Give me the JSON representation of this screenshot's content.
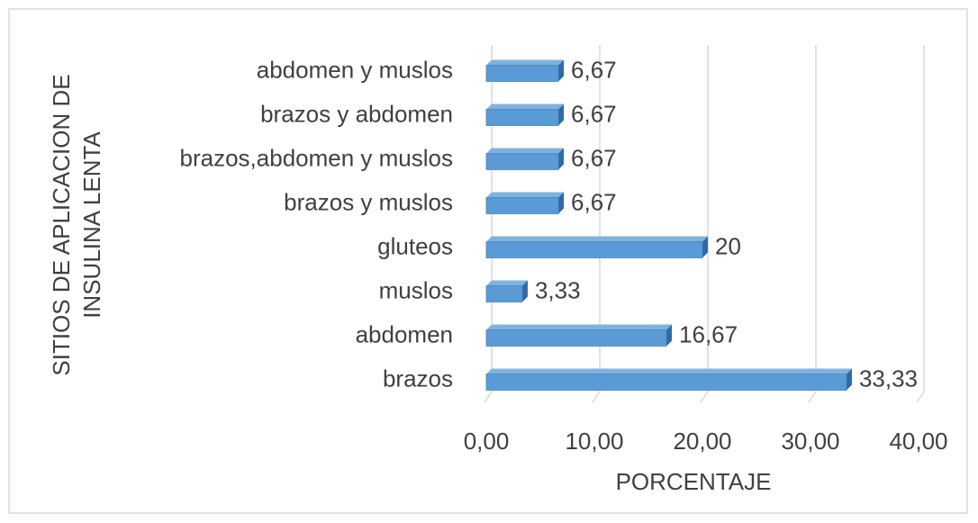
{
  "chart_data": {
    "type": "bar",
    "orientation": "horizontal",
    "xlabel": "PORCENTAJE",
    "ylabel": [
      "SITIOS DE APLICACION DE",
      "INSULINA LENTA"
    ],
    "categories": [
      "brazos",
      "abdomen",
      "muslos",
      "gluteos",
      "brazos y muslos",
      "brazos,abdomen y muslos",
      "brazos y abdomen",
      "abdomen y muslos"
    ],
    "values": [
      33.33,
      16.67,
      3.33,
      20,
      6.67,
      6.67,
      6.67,
      6.67
    ],
    "value_labels": [
      "33,33",
      "16,67",
      "3,33",
      "20",
      "6,67",
      "6,67",
      "6,67",
      "6,67"
    ],
    "color": "#5b9bd5",
    "xlim": [
      0,
      40
    ],
    "xticks": [
      {
        "value": 0,
        "label": "0,00"
      },
      {
        "value": 10,
        "label": "10,00"
      },
      {
        "value": 20,
        "label": "20,00"
      },
      {
        "value": 30,
        "label": "30,00"
      },
      {
        "value": 40,
        "label": "40,00"
      }
    ],
    "grid": true
  }
}
